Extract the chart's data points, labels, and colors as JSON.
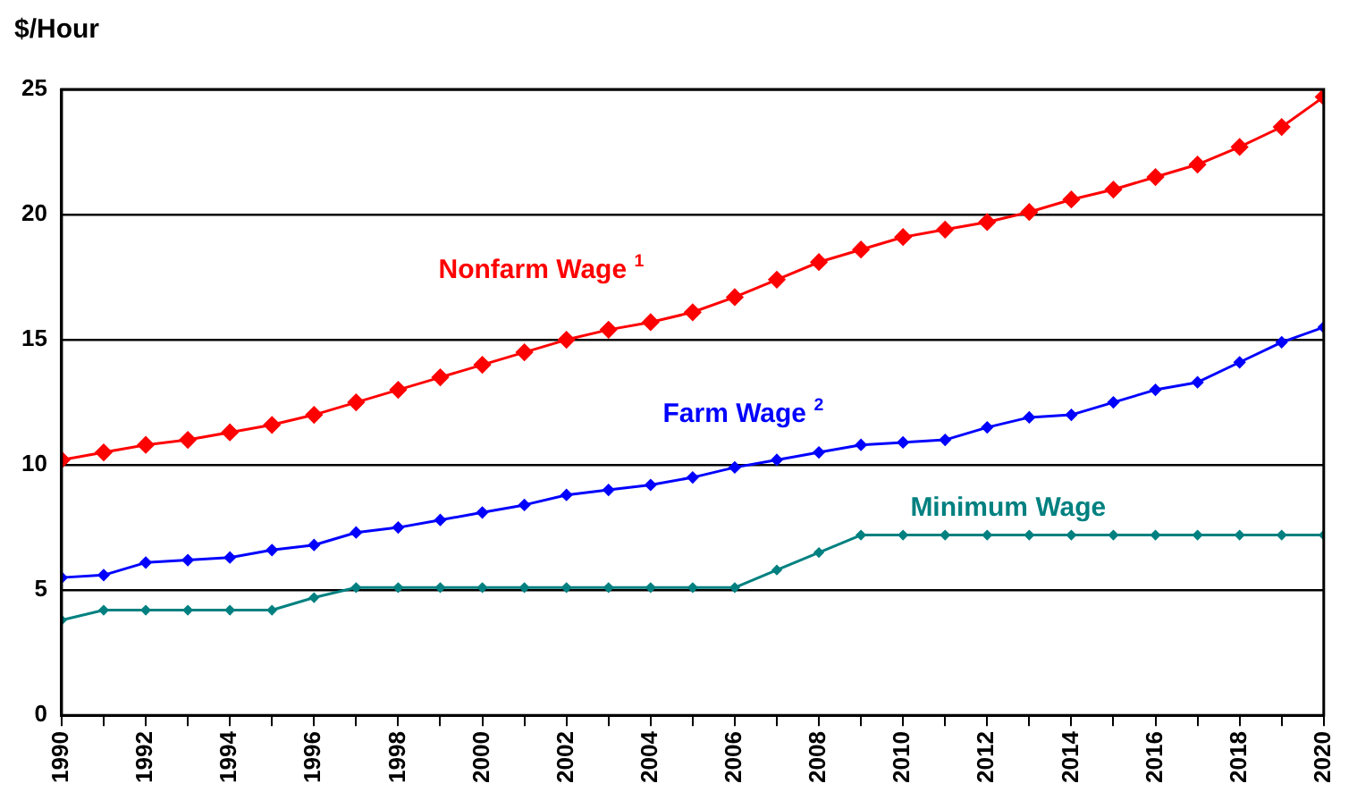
{
  "chart_data": {
    "type": "line",
    "ylabel": "$/Hour",
    "x": [
      1990,
      1991,
      1992,
      1993,
      1994,
      1995,
      1996,
      1997,
      1998,
      1999,
      2000,
      2001,
      2002,
      2003,
      2004,
      2005,
      2006,
      2007,
      2008,
      2009,
      2010,
      2011,
      2012,
      2013,
      2014,
      2015,
      2016,
      2017,
      2018,
      2019,
      2020
    ],
    "series": [
      {
        "name": "Nonfarm Wage $^{1}$",
        "color": "#ff0000",
        "values": [
          10.2,
          10.5,
          10.8,
          11.0,
          11.3,
          11.6,
          12.0,
          12.5,
          13.0,
          13.5,
          14.0,
          14.5,
          15.0,
          15.4,
          15.7,
          16.1,
          16.7,
          17.4,
          18.1,
          18.6,
          19.1,
          19.4,
          19.7,
          20.1,
          20.6,
          21.0,
          21.5,
          22.0,
          22.7,
          23.5,
          24.7
        ]
      },
      {
        "name": "Farm Wage $^{2}$",
        "color": "#0000ff",
        "values": [
          5.5,
          5.6,
          6.1,
          6.2,
          6.3,
          6.6,
          6.8,
          7.3,
          7.5,
          7.8,
          8.1,
          8.4,
          8.8,
          9.0,
          9.2,
          9.5,
          9.9,
          10.2,
          10.5,
          10.8,
          10.9,
          11.0,
          11.5,
          11.9,
          12.0,
          12.5,
          13.0,
          13.3,
          14.1,
          14.9,
          15.5
        ]
      },
      {
        "name": "Minimum Wage",
        "color": "#008080",
        "values": [
          3.8,
          4.2,
          4.2,
          4.2,
          4.2,
          4.2,
          4.7,
          5.1,
          5.1,
          5.1,
          5.1,
          5.1,
          5.1,
          5.1,
          5.1,
          5.1,
          5.1,
          5.8,
          6.5,
          7.2,
          7.2,
          7.2,
          7.2,
          7.2,
          7.2,
          7.2,
          7.2,
          7.2,
          7.2,
          7.2,
          7.2
        ]
      }
    ],
    "xlim": [
      1990,
      2020
    ],
    "xticks": [
      1990,
      {
        "value": 1991,
        "label": null
      },
      1992,
      {
        "value": 1993,
        "label": null
      },
      1994,
      {
        "value": 1995,
        "label": null
      },
      1996,
      {
        "value": 1997,
        "label": null
      },
      1998,
      {
        "value": 1999,
        "label": null
      },
      2000,
      {
        "value": 2001,
        "label": null
      },
      2002,
      {
        "value": 2003,
        "label": null
      },
      2004,
      {
        "value": 2005,
        "label": null
      },
      2006,
      {
        "value": 2007,
        "label": null
      },
      2008,
      {
        "value": 2009,
        "label": null
      },
      2010,
      {
        "value": 2011,
        "label": null
      },
      2012,
      {
        "value": 2013,
        "label": null
      },
      2014,
      {
        "value": 2015,
        "label": null
      },
      2016,
      {
        "value": 2017,
        "label": null
      },
      2018,
      {
        "value": 2019,
        "label": null
      },
      2020
    ],
    "ylim": [
      0,
      25
    ],
    "yticks": [
      0,
      5,
      10,
      15,
      20,
      25
    ],
    "grid": "y",
    "legend": false,
    "marker": "diamond",
    "line_style": "solid"
  }
}
